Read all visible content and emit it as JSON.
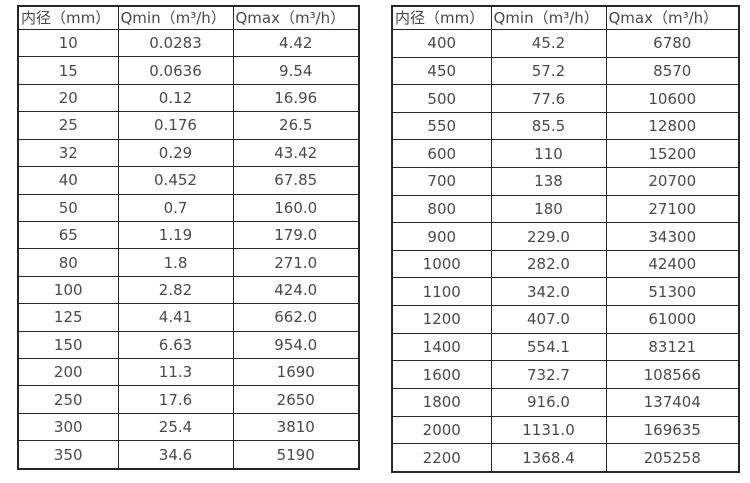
{
  "tables": [
    {
      "name": "flow-spec-table-small-diameters",
      "headers": [
        "内径（mm）",
        "Qmin（m³/h）",
        "Qmax（m³/h）"
      ],
      "rows": [
        [
          "10",
          "0.0283",
          "4.42"
        ],
        [
          "15",
          "0.0636",
          "9.54"
        ],
        [
          "20",
          "0.12",
          "16.96"
        ],
        [
          "25",
          "0.176",
          "26.5"
        ],
        [
          "32",
          "0.29",
          "43.42"
        ],
        [
          "40",
          "0.452",
          "67.85"
        ],
        [
          "50",
          "0.7",
          "160.0"
        ],
        [
          "65",
          "1.19",
          "179.0"
        ],
        [
          "80",
          "1.8",
          "271.0"
        ],
        [
          "100",
          "2.82",
          "424.0"
        ],
        [
          "125",
          "4.41",
          "662.0"
        ],
        [
          "150",
          "6.63",
          "954.0"
        ],
        [
          "200",
          "11.3",
          "1690"
        ],
        [
          "250",
          "17.6",
          "2650"
        ],
        [
          "300",
          "25.4",
          "3810"
        ],
        [
          "350",
          "34.6",
          "5190"
        ]
      ]
    },
    {
      "name": "flow-spec-table-large-diameters",
      "headers": [
        "内径（mm）",
        "Qmin（m³/h）",
        "Qmax（m³/h）"
      ],
      "rows": [
        [
          "400",
          "45.2",
          "6780"
        ],
        [
          "450",
          "57.2",
          "8570"
        ],
        [
          "500",
          "77.6",
          "10600"
        ],
        [
          "550",
          "85.5",
          "12800"
        ],
        [
          "600",
          "110",
          "15200"
        ],
        [
          "700",
          "138",
          "20700"
        ],
        [
          "800",
          "180",
          "27100"
        ],
        [
          "900",
          "229.0",
          "34300"
        ],
        [
          "1000",
          "282.0",
          "42400"
        ],
        [
          "1100",
          "342.0",
          "51300"
        ],
        [
          "1200",
          "407.0",
          "61000"
        ],
        [
          "1400",
          "554.1",
          "83121"
        ],
        [
          "1600",
          "732.7",
          "108566"
        ],
        [
          "1800",
          "916.0",
          "137404"
        ],
        [
          "2000",
          "1131.0",
          "169635"
        ],
        [
          "2200",
          "1368.4",
          "205258"
        ]
      ]
    }
  ],
  "colors": {
    "border": "#262626",
    "text": "#4a4a4a",
    "background": "#ffffff"
  }
}
